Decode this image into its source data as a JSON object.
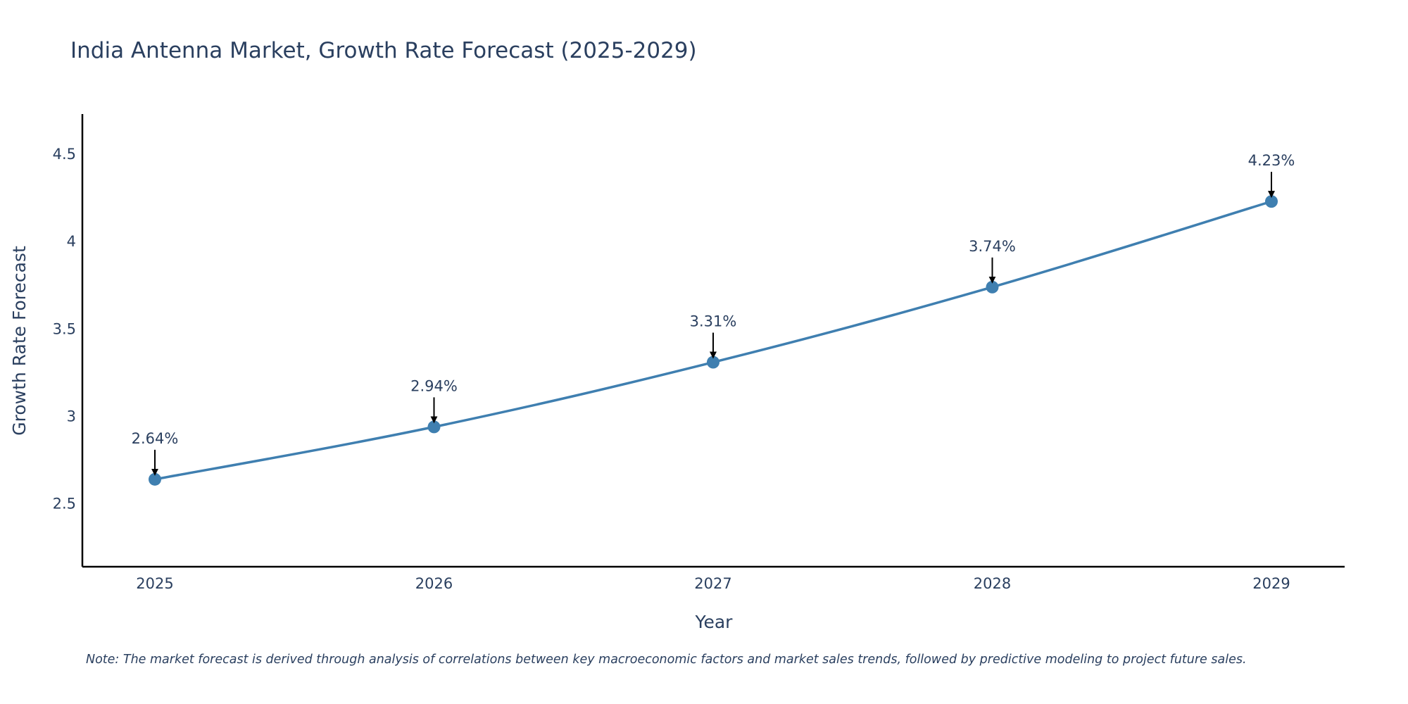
{
  "chart_data": {
    "type": "line",
    "title": "India Antenna Market, Growth Rate Forecast (2025-2029)",
    "xlabel": "Year",
    "ylabel": "Growth Rate Forecast",
    "categories": [
      "2025",
      "2026",
      "2027",
      "2028",
      "2029"
    ],
    "series": [
      {
        "name": "Growth Rate Forecast",
        "values": [
          2.64,
          2.94,
          3.31,
          3.74,
          4.23
        ]
      }
    ],
    "data_labels": [
      "2.64%",
      "2.94%",
      "3.31%",
      "3.74%",
      "4.23%"
    ],
    "y_ticks": [
      2.5,
      3,
      3.5,
      4,
      4.5
    ],
    "y_tick_labels": [
      "2.5",
      "3",
      "3.5",
      "4",
      "4.5"
    ],
    "ylim": [
      2.14,
      4.73
    ],
    "grid": false,
    "legend": "none",
    "colors": {
      "line": "#3f7fb0",
      "marker": "#3f7fb0",
      "axis": "#000000",
      "text": "#2a3f5f",
      "arrow": "#000000"
    }
  },
  "note": "Note: The market forecast is derived through analysis of correlations between key macroeconomic factors and market sales trends, followed by predictive modeling to project future sales."
}
